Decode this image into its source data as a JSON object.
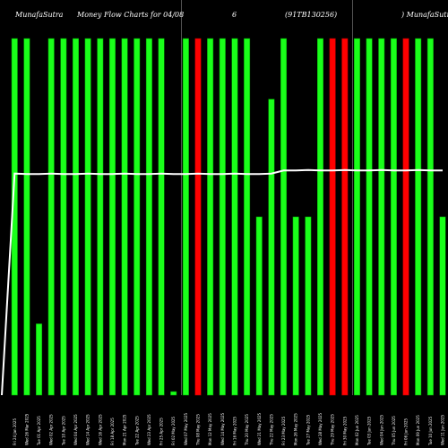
{
  "title_parts": {
    "left": "MunafaSutra",
    "mid1": "Money Flow Charts for 04/08",
    "mid2": "6",
    "code": "(91TB130256)",
    "right": ") MunafaSutra"
  },
  "colors": {
    "background": "#000000",
    "up": "#1aff1a",
    "down": "#ff0000",
    "bar_border": "#009900",
    "price_line": "#ffffff",
    "grid": "#888888",
    "text": "#ffffff"
  },
  "chart_data": {
    "type": "bar",
    "ylim": [
      0,
      100
    ],
    "bar_values": [
      100,
      100,
      20,
      100,
      100,
      100,
      100,
      100,
      100,
      100,
      100,
      100,
      100,
      1,
      100,
      100,
      100,
      100,
      100,
      100,
      50,
      83,
      100,
      50,
      50,
      100,
      100,
      100,
      100,
      100,
      100,
      100,
      100,
      100,
      100,
      50
    ],
    "bar_colors": [
      "green",
      "green",
      "green",
      "green",
      "green",
      "green",
      "green",
      "green",
      "green",
      "green",
      "green",
      "green",
      "green",
      "green",
      "green",
      "red",
      "green",
      "green",
      "green",
      "green",
      "green",
      "green",
      "green",
      "green",
      "green",
      "green",
      "red",
      "red",
      "green",
      "green",
      "green",
      "green",
      "red",
      "green",
      "green",
      "green"
    ],
    "price_line": {
      "start": 0,
      "values": [
        62,
        62,
        62,
        62,
        62,
        62,
        62,
        62,
        62,
        62,
        62,
        62,
        62,
        62,
        62,
        62,
        62,
        62,
        62,
        62,
        62,
        62,
        63,
        63,
        63,
        63,
        63,
        63,
        63,
        63,
        63,
        63,
        63,
        63,
        63,
        63
      ]
    },
    "gridline_positions": [
      14,
      28
    ],
    "x_labels": [
      "Fri 24 Jan 2025",
      "Wed 26 Mar 2025",
      "Tue 01 Apr 2025",
      "Wed 02 Apr 2025",
      "Tue 10 Apr 2025",
      "Wed 04 Apr 2025",
      "Wed 14 Apr 2025",
      "Wed 16 Apr 2025",
      "Fri 18 Apr 2025",
      "Mon 21 Apr 2025",
      "Tue 22 Apr 2025",
      "Wed 23 Apr 2025",
      "Fri 25 Apr 2025",
      "Fri 02 May 2025",
      "Wed 07 May 2025",
      "Thu 08 May 2025",
      "Mon 12 May 2025",
      "Wed 14 May 2025",
      "Fri 16 May 2025",
      "Thu 20 May 2025",
      "Wed 21 May 2025",
      "Thu 22 May 2025",
      "Fri 23 May 2025",
      "Mon 26 May 2025",
      "Tue 27 May 2025",
      "Wed 28 May 2025",
      "Thu 29 May 2025",
      "Fri 30 May 2025",
      "Mon 02 Jun 2025",
      "Tue 03 Jun 2025",
      "Wed 04 Jun 2025",
      "Thu 05 Jun 2025",
      "Fri 06 Jun 2025",
      "Mon 09 Jun 2025",
      "Tue 10 Jun 2025",
      "Wed 11 Jun 2025"
    ]
  }
}
